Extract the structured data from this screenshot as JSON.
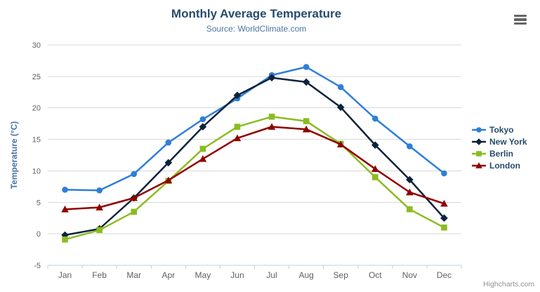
{
  "header": {
    "title": "Monthly Average Temperature",
    "subtitle": "Source: WorldClimate.com"
  },
  "export_menu": {
    "icon": "hamburger-icon"
  },
  "credits": {
    "label": "Highcharts.com"
  },
  "palette": {
    "title_color": "#274b6d",
    "subtitle_color": "#4d759e",
    "axis_title_color": "#4572A7",
    "tick_label_color": "#606060",
    "grid_color": "#D8D8D8",
    "axis_line_color": "#C0D0E0",
    "legend_text_color": "#274b6d",
    "credits_color": "#909090"
  },
  "chart_data": {
    "type": "line",
    "title": "Monthly Average Temperature",
    "subtitle": "Source: WorldClimate.com",
    "xlabel": "",
    "ylabel": "Temperature (°C)",
    "ylim": [
      -5,
      30
    ],
    "ytick_step": 5,
    "grid": true,
    "legend_position": "right",
    "categories": [
      "Jan",
      "Feb",
      "Mar",
      "Apr",
      "May",
      "Jun",
      "Jul",
      "Aug",
      "Sep",
      "Oct",
      "Nov",
      "Dec"
    ],
    "series": [
      {
        "name": "Tokyo",
        "color": "#2f7ed8",
        "marker": "circle",
        "values": [
          7.0,
          6.9,
          9.5,
          14.5,
          18.2,
          21.5,
          25.2,
          26.5,
          23.3,
          18.3,
          13.9,
          9.6
        ]
      },
      {
        "name": "New York",
        "color": "#0d233a",
        "marker": "diamond",
        "values": [
          -0.2,
          0.8,
          5.7,
          11.3,
          17.0,
          22.0,
          24.8,
          24.1,
          20.1,
          14.1,
          8.6,
          2.5
        ]
      },
      {
        "name": "Berlin",
        "color": "#8bbc21",
        "marker": "square",
        "values": [
          -0.9,
          0.6,
          3.5,
          8.4,
          13.5,
          17.0,
          18.6,
          17.9,
          14.3,
          9.0,
          3.9,
          1.0
        ]
      },
      {
        "name": "London",
        "color": "#910000",
        "marker": "triangle",
        "values": [
          3.9,
          4.2,
          5.7,
          8.5,
          11.9,
          15.2,
          17.0,
          16.6,
          14.2,
          10.3,
          6.6,
          4.8
        ]
      }
    ]
  }
}
